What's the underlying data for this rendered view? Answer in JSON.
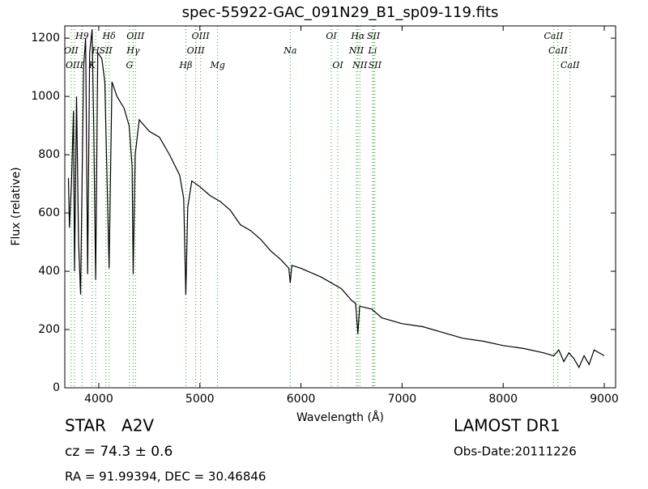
{
  "chart_data": {
    "type": "line",
    "title": "spec-55922-GAC_091N29_B1_sp09-119.fits",
    "x_label": "Wavelength (Å)",
    "y_label": "Flux (relative)",
    "x": [
      3700,
      3710,
      3730,
      3750,
      3760,
      3780,
      3800,
      3820,
      3835,
      3850,
      3870,
      3890,
      3910,
      3934,
      3950,
      3969,
      3990,
      4030,
      4060,
      4102,
      4130,
      4180,
      4250,
      4300,
      4330,
      4340,
      4360,
      4400,
      4500,
      4600,
      4700,
      4800,
      4840,
      4861,
      4880,
      4920,
      5000,
      5100,
      5200,
      5300,
      5400,
      5500,
      5600,
      5700,
      5800,
      5880,
      5894,
      5910,
      6000,
      6200,
      6400,
      6500,
      6540,
      6563,
      6580,
      6700,
      6800,
      7000,
      7200,
      7400,
      7600,
      7800,
      8000,
      8200,
      8400,
      8500,
      8550,
      8600,
      8650,
      8700,
      8750,
      8800,
      8850,
      8900,
      9000
    ],
    "series": [
      {
        "name": "Flux",
        "color": "#000000",
        "values": [
          720,
          550,
          700,
          950,
          400,
          1000,
          500,
          320,
          700,
          1100,
          1200,
          390,
          1150,
          1230,
          900,
          370,
          1150,
          1130,
          1050,
          410,
          1050,
          1000,
          960,
          900,
          760,
          390,
          800,
          920,
          880,
          860,
          800,
          730,
          650,
          320,
          620,
          710,
          690,
          660,
          640,
          610,
          560,
          540,
          510,
          470,
          440,
          410,
          360,
          420,
          410,
          380,
          340,
          300,
          290,
          185,
          280,
          270,
          240,
          220,
          210,
          190,
          170,
          160,
          145,
          135,
          120,
          110,
          130,
          90,
          120,
          100,
          70,
          110,
          80,
          130,
          110
        ]
      }
    ],
    "lines": [
      {
        "label": "OII",
        "x": 3727
      },
      {
        "label": "OIII",
        "x": 3760
      },
      {
        "label": "H9",
        "x": 3835
      },
      {
        "label": "K",
        "x": 3934
      },
      {
        "label": "H",
        "x": 3969
      },
      {
        "label": "SII",
        "x": 4070
      },
      {
        "label": "Hδ",
        "x": 4102
      },
      {
        "label": "G",
        "x": 4304
      },
      {
        "label": "Hγ",
        "x": 4340
      },
      {
        "label": "OIII",
        "x": 4363
      },
      {
        "label": "Hβ",
        "x": 4861
      },
      {
        "label": "OIII",
        "x": 4959
      },
      {
        "label": "OIII",
        "x": 5007
      },
      {
        "label": "Mg",
        "x": 5175
      },
      {
        "label": "Na",
        "x": 5894
      },
      {
        "label": "OI",
        "x": 6300
      },
      {
        "label": "OI",
        "x": 6364
      },
      {
        "label": "NII",
        "x": 6548
      },
      {
        "label": "Hα",
        "x": 6563
      },
      {
        "label": "NII",
        "x": 6583
      },
      {
        "label": "Li",
        "x": 6708
      },
      {
        "label": "SII",
        "x": 6717
      },
      {
        "label": "SII",
        "x": 6731
      },
      {
        "label": "CaII",
        "x": 8498
      },
      {
        "label": "CaII",
        "x": 8542
      },
      {
        "label": "CaII",
        "x": 8662
      }
    ],
    "xlim": [
      3664,
      9112
    ],
    "ylim": [
      0,
      1242
    ],
    "xticks": [
      4000,
      5000,
      6000,
      7000,
      8000,
      9000
    ],
    "yticks": [
      0,
      200,
      400,
      600,
      800,
      1000,
      1200
    ],
    "line_color": "#2ca02c"
  },
  "footer": {
    "object": "STAR   A2V",
    "cz": "cz = 74.3 ± 0.6",
    "coords": "RA = 91.99394, DEC = 30.46846",
    "survey": "LAMOST DR1",
    "obs_date": "Obs-Date:20111226"
  }
}
